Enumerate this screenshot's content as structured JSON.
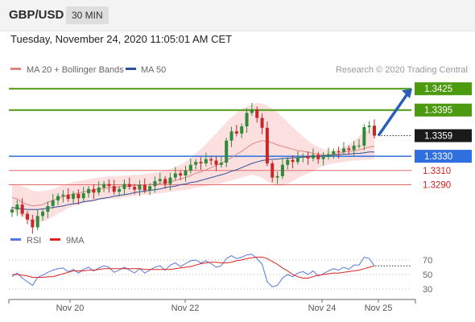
{
  "header": {
    "pair": "GBP/USD",
    "timeframe": "30 MIN"
  },
  "datetime": "Tuesday, November 24, 2020 11:05:01 AM CET",
  "legend": {
    "ma20": "MA 20 + Bollinger Bands",
    "ma50": "MA 50",
    "credit": "Research © 2020 Trading Central",
    "rsi": "RSI",
    "ma9": "9MA"
  },
  "colors": {
    "resistance": "#4c9a0f",
    "support": "#2f6fe0",
    "support_light": "#e66b6b",
    "bollinger_fill": "#fcd9d9",
    "ma20": "#e08585",
    "ma50": "#2e4f9c",
    "candle_up": "#2e8b3a",
    "candle_down": "#c62828",
    "rsi_line": "#5577dd",
    "ma9_line": "#dd2222",
    "current_price_bg": "#1a1a1a",
    "arrow": "#2a5fb8"
  },
  "chart_data": [
    {
      "type": "line",
      "subtype": "candlestick",
      "title": "GBP/USD",
      "x_ticks": [
        "Nov 20",
        "Nov 22",
        "Nov 24",
        "Nov 25"
      ],
      "ylim": [
        1.3235,
        1.344
      ],
      "price_levels": [
        {
          "value": 1.3425,
          "label": "1.3425",
          "kind": "resistance"
        },
        {
          "value": 1.3395,
          "label": "1.3395",
          "kind": "resistance"
        },
        {
          "value": 1.3359,
          "label": "1.3359",
          "kind": "current"
        },
        {
          "value": 1.333,
          "label": "1.3330",
          "kind": "support"
        },
        {
          "value": 1.331,
          "label": "1.3310",
          "kind": "support_light"
        },
        {
          "value": 1.329,
          "label": "1.3290",
          "kind": "support_light"
        }
      ],
      "close_series": [
        1.3255,
        1.3262,
        1.3249,
        1.3241,
        1.323,
        1.3246,
        1.3252,
        1.326,
        1.3268,
        1.3274,
        1.3276,
        1.327,
        1.3277,
        1.3271,
        1.3278,
        1.3284,
        1.3279,
        1.3286,
        1.3291,
        1.3288,
        1.328,
        1.3284,
        1.3291,
        1.3287,
        1.3283,
        1.329,
        1.3282,
        1.3288,
        1.3295,
        1.3298,
        1.3291,
        1.33,
        1.3306,
        1.3303,
        1.331,
        1.3318,
        1.3322,
        1.332,
        1.3326,
        1.3324,
        1.3318,
        1.3321,
        1.3352,
        1.3365,
        1.3362,
        1.3372,
        1.3391,
        1.3396,
        1.3384,
        1.337,
        1.332,
        1.33,
        1.3302,
        1.3318,
        1.3325,
        1.3322,
        1.3328,
        1.333,
        1.3327,
        1.3332,
        1.3326,
        1.3329,
        1.3333,
        1.3337,
        1.3336,
        1.3341,
        1.3339,
        1.3345,
        1.3345,
        1.3371,
        1.3373,
        1.3359
      ],
      "ma20": [
        1.3272,
        1.327,
        1.3265,
        1.3262,
        1.326,
        1.3261,
        1.3262,
        1.3265,
        1.3268,
        1.3271,
        1.3273,
        1.3275,
        1.3277,
        1.3278,
        1.328,
        1.3281,
        1.3282,
        1.3284,
        1.3285,
        1.3286,
        1.3286,
        1.3287,
        1.3288,
        1.3288,
        1.3289,
        1.3289,
        1.329,
        1.329,
        1.3291,
        1.3292,
        1.3293,
        1.3294,
        1.3296,
        1.3298,
        1.33,
        1.3303,
        1.3306,
        1.3308,
        1.3311,
        1.3314,
        1.3317,
        1.332,
        1.3324,
        1.3328,
        1.3333,
        1.3337,
        1.3342,
        1.3347,
        1.335,
        1.3352,
        1.3351,
        1.3349,
        1.3346,
        1.3344,
        1.3342,
        1.334,
        1.3338,
        1.3337,
        1.3336,
        1.3334,
        1.3333,
        1.3332,
        1.3331,
        1.3333,
        1.3334,
        1.3336,
        1.3337,
        1.3338,
        1.3339,
        1.3341,
        1.3343,
        1.3344
      ],
      "boll_upper": [
        1.3292,
        1.329,
        1.3288,
        1.3285,
        1.3282,
        1.328,
        1.3281,
        1.3282,
        1.3284,
        1.3287,
        1.329,
        1.3292,
        1.3294,
        1.3295,
        1.3296,
        1.3298,
        1.3299,
        1.33,
        1.3301,
        1.3302,
        1.3302,
        1.3302,
        1.3303,
        1.3303,
        1.3304,
        1.3304,
        1.3305,
        1.3306,
        1.3307,
        1.3308,
        1.331,
        1.3312,
        1.3315,
        1.3318,
        1.3322,
        1.3328,
        1.3334,
        1.334,
        1.3347,
        1.3355,
        1.3362,
        1.337,
        1.3378,
        1.3385,
        1.3391,
        1.3396,
        1.34,
        1.3403,
        1.3405,
        1.3404,
        1.3401,
        1.3397,
        1.3392,
        1.3385,
        1.3378,
        1.3371,
        1.3364,
        1.3358,
        1.3352,
        1.3347,
        1.3343,
        1.334,
        1.3338,
        1.3338,
        1.334,
        1.3343,
        1.3347,
        1.3352,
        1.3358,
        1.3364,
        1.3369,
        1.3372
      ],
      "boll_lower": [
        1.3252,
        1.325,
        1.3246,
        1.324,
        1.3236,
        1.3236,
        1.3238,
        1.3241,
        1.3245,
        1.3249,
        1.3253,
        1.3257,
        1.326,
        1.3262,
        1.3264,
        1.3265,
        1.3266,
        1.3268,
        1.3269,
        1.327,
        1.327,
        1.3271,
        1.3272,
        1.3273,
        1.3274,
        1.3275,
        1.3276,
        1.3276,
        1.3277,
        1.3278,
        1.3279,
        1.328,
        1.3281,
        1.3282,
        1.3283,
        1.3284,
        1.3286,
        1.3287,
        1.3288,
        1.3289,
        1.329,
        1.3292,
        1.3294,
        1.3296,
        1.3298,
        1.33,
        1.3302,
        1.3304,
        1.3302,
        1.33,
        1.3295,
        1.329,
        1.3288,
        1.3288,
        1.3291,
        1.3295,
        1.3299,
        1.3303,
        1.3306,
        1.3309,
        1.3313,
        1.3316,
        1.3318,
        1.332,
        1.3321,
        1.3322,
        1.3323,
        1.3324,
        1.3324,
        1.3325,
        1.3325,
        1.3326
      ],
      "ma50": [
        1.3258,
        1.3257,
        1.3256,
        1.3255,
        1.3255,
        1.3255,
        1.3256,
        1.3257,
        1.3258,
        1.3259,
        1.326,
        1.3262,
        1.3263,
        1.3264,
        1.3266,
        1.3267,
        1.3268,
        1.327,
        1.3271,
        1.3272,
        1.3274,
        1.3275,
        1.3276,
        1.3277,
        1.3279,
        1.328,
        1.3281,
        1.3282,
        1.3283,
        1.3284,
        1.3286,
        1.3287,
        1.3288,
        1.329,
        1.3291,
        1.3293,
        1.3294,
        1.3296,
        1.3298,
        1.33,
        1.3302,
        1.3304,
        1.3306,
        1.3309,
        1.3311,
        1.3314,
        1.3317,
        1.332,
        1.3322,
        1.3324,
        1.3325,
        1.3326,
        1.3326,
        1.3327,
        1.3327,
        1.3328,
        1.3328,
        1.3329,
        1.3329,
        1.333,
        1.333,
        1.3331,
        1.3331,
        1.3332,
        1.3332,
        1.3333,
        1.3333,
        1.3334,
        1.3334,
        1.3335,
        1.3336,
        1.3336
      ],
      "projection": {
        "from": 1.3359,
        "to": 1.3425
      }
    },
    {
      "type": "line",
      "title": "",
      "y_ticks": [
        70,
        50,
        30
      ],
      "ylim": [
        20,
        80
      ],
      "series": [
        {
          "name": "RSI",
          "values": [
            47,
            52,
            45,
            40,
            35,
            46,
            49,
            53,
            56,
            58,
            59,
            54,
            57,
            52,
            57,
            60,
            55,
            59,
            62,
            60,
            53,
            56,
            60,
            56,
            52,
            58,
            52,
            56,
            60,
            62,
            56,
            63,
            66,
            61,
            65,
            69,
            70,
            66,
            69,
            65,
            60,
            62,
            72,
            76,
            72,
            74,
            77,
            78,
            72,
            64,
            40,
            33,
            35,
            45,
            50,
            47,
            52,
            54,
            50,
            55,
            48,
            51,
            55,
            58,
            56,
            60,
            57,
            63,
            63,
            74,
            72,
            62
          ]
        },
        {
          "name": "9MA",
          "values": [
            50,
            50,
            49,
            48,
            46,
            46,
            46,
            47,
            47,
            49,
            51,
            53,
            55,
            55,
            55,
            56,
            56,
            57,
            58,
            58,
            58,
            58,
            58,
            58,
            58,
            58,
            57,
            57,
            57,
            57,
            57,
            57,
            58,
            59,
            60,
            61,
            63,
            65,
            66,
            67,
            67,
            66,
            66,
            67,
            69,
            70,
            72,
            73,
            74,
            74,
            72,
            68,
            64,
            59,
            55,
            50,
            47,
            45,
            45,
            47,
            49,
            50,
            51,
            52,
            52,
            53,
            54,
            55,
            56,
            58,
            60,
            62
          ]
        }
      ]
    }
  ]
}
